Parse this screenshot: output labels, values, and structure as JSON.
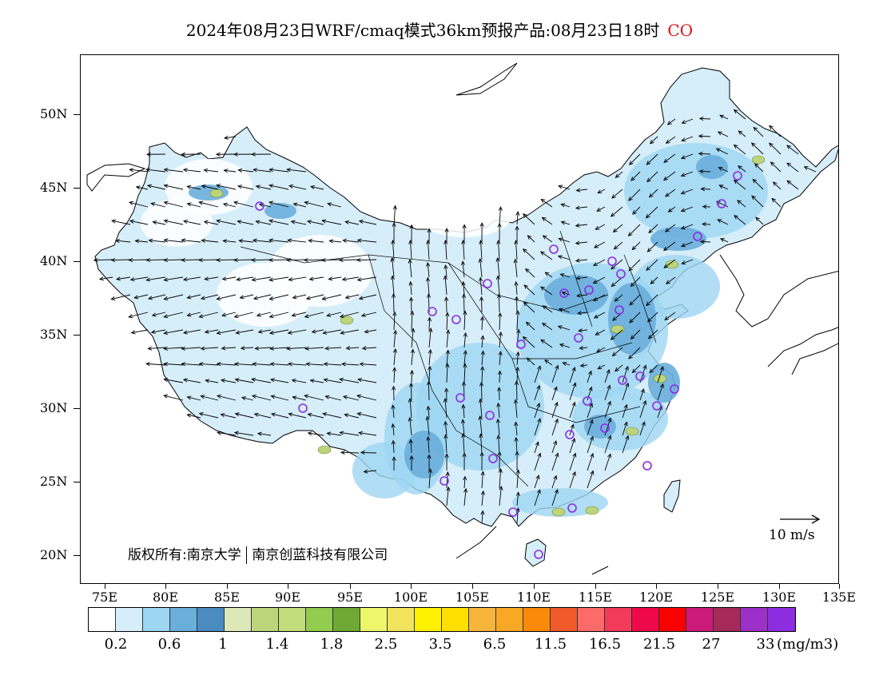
{
  "title": {
    "text": "2024年08月23日WRF/cmaq模式36km预报产品:08月23日18时",
    "species": "CO",
    "species_color": "#e01010"
  },
  "lat_labels": [
    "50N",
    "45N",
    "40N",
    "35N",
    "30N",
    "25N",
    "20N"
  ],
  "lon_labels": [
    "75E",
    "80E",
    "85E",
    "90E",
    "95E",
    "100E",
    "105E",
    "110E",
    "115E",
    "120E",
    "125E",
    "130E",
    "135E"
  ],
  "copyright": {
    "prefix": "版权所有:南京大学",
    "suffix": "南京创蓝科技有限公司"
  },
  "wind_scale": {
    "label": "10 m/s"
  },
  "colorbar": {
    "colors": [
      "#ffffff",
      "#d6eefa",
      "#9dd6f3",
      "#6aaedb",
      "#4a8cc0",
      "#dde8b8",
      "#bcd57c",
      "#c2dd7c",
      "#92cc50",
      "#6fa834",
      "#eef76a",
      "#f1e45c",
      "#fff200",
      "#ffdf00",
      "#f8b53c",
      "#f9a826",
      "#fb8a0a",
      "#f15a2a",
      "#fd6a6a",
      "#f23a5a",
      "#ee0a4a",
      "#fc0000",
      "#cc1a7a",
      "#a52a5a",
      "#9c30c8",
      "#8c2de0"
    ],
    "labels": [
      "0.2",
      "0.6",
      "1",
      "1.4",
      "1.8",
      "2.5",
      "3.5",
      "6.5",
      "11.5",
      "16.5",
      "21.5",
      "27",
      "33"
    ],
    "unit": "(mg/m3)"
  },
  "map": {
    "station_color": "#8a2be2",
    "low_color": "#d6eefa",
    "mid_color": "#9dd6f3",
    "high_color": "#6aaedb",
    "peak_color": "#bcd57c",
    "wind_color": "#000000"
  }
}
